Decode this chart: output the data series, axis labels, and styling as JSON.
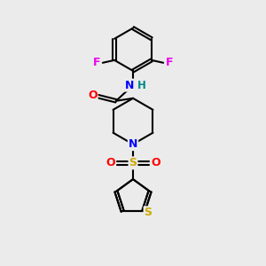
{
  "bg_color": "#ebebeb",
  "atom_colors": {
    "F": "#ee00ee",
    "O": "#ff0000",
    "N": "#0000ff",
    "S_sulfonyl": "#ccaa00",
    "S_thiophene": "#ccaa00",
    "H": "#008888",
    "C": "#000000"
  },
  "bond_color": "#000000",
  "lw": 1.5
}
